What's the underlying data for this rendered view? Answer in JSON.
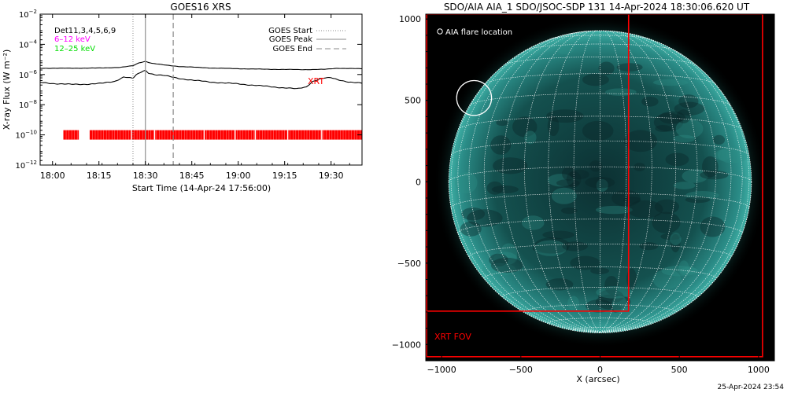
{
  "footer_timestamp": "25-Apr-2024 23:54",
  "colors": {
    "xrt": "#ff0000",
    "band_low": "#ff00ff",
    "band_high": "#00dd00",
    "axes": "#000000",
    "aia_disk": "#1d6f6c",
    "aia_background": "#000000"
  },
  "chart_data": [
    {
      "type": "line",
      "title": "GOES16 XRS",
      "xlabel": "Start Time (14-Apr-24 17:56:00)",
      "ylabel": "X-ray Flux (W m⁻²)",
      "y_scale": "log",
      "ylim": [
        1e-12,
        0.01
      ],
      "xlim": [
        0,
        104
      ],
      "x_units": "minutes after 17:56:00",
      "x_ticks": [
        {
          "value": 4,
          "label": "18:00"
        },
        {
          "value": 19,
          "label": "18:15"
        },
        {
          "value": 34,
          "label": "18:30"
        },
        {
          "value": 49,
          "label": "18:45"
        },
        {
          "value": 64,
          "label": "19:00"
        },
        {
          "value": 79,
          "label": "19:15"
        },
        {
          "value": 94,
          "label": "19:30"
        }
      ],
      "y_ticks": [
        {
          "value": 0.01,
          "base": "10",
          "exp": "−2"
        },
        {
          "value": 0.0001,
          "base": "10",
          "exp": "−4"
        },
        {
          "value": 1e-06,
          "base": "10",
          "exp": "−6"
        },
        {
          "value": 1e-08,
          "base": "10",
          "exp": "−8"
        },
        {
          "value": 1e-10,
          "base": "10",
          "exp": "−10"
        },
        {
          "value": 1e-12,
          "base": "10",
          "exp": "−12"
        }
      ],
      "legend_topleft": [
        "Det11,3,4,5,6,9",
        "6–12 keV",
        "12–25 keV"
      ],
      "legend_topright": [
        {
          "label": "GOES Start",
          "style": "dotted"
        },
        {
          "label": "GOES Peak",
          "style": "solid"
        },
        {
          "label": "GOES End",
          "style": "dashed"
        }
      ],
      "xrt_label": "XRT",
      "markers": {
        "goes_start": 30,
        "goes_peak": 34,
        "goes_end": 43
      },
      "xrt_observations": {
        "y": 1e-10,
        "segments": [
          [
            7.5,
            12.5
          ],
          [
            16,
            104
          ]
        ],
        "gaps": [
          29.5,
          37,
          53,
          63,
          69.5,
          80,
          91
        ]
      },
      "series": [
        {
          "band": "low",
          "color": "#000000",
          "x": [
            0,
            10,
            20,
            26,
            30,
            32,
            34,
            36,
            40,
            45,
            55,
            65,
            75,
            85,
            92,
            96,
            100,
            104
          ],
          "y": [
            2.6e-06,
            2.6e-06,
            2.7e-06,
            3e-06,
            3.8e-06,
            6e-06,
            7.5e-06,
            5.6e-06,
            4.3e-06,
            3.4e-06,
            2.7e-06,
            2.4e-06,
            2.2e-06,
            2.1e-06,
            2.2e-06,
            2.6e-06,
            2.5e-06,
            2.4e-06
          ]
        },
        {
          "band": "high",
          "color": "#000000",
          "x": [
            0,
            5,
            10,
            15,
            20,
            24,
            26,
            27,
            28,
            30,
            31,
            33,
            34,
            35,
            37,
            40,
            45,
            50,
            55,
            60,
            65,
            70,
            75,
            80,
            83,
            86,
            88,
            90,
            92,
            94,
            96,
            100,
            104
          ],
          "y": [
            3e-07,
            2.5e-07,
            2.2e-07,
            2.3e-07,
            2.6e-07,
            3.5e-07,
            5.5e-07,
            7e-07,
            6.5e-07,
            5.5e-07,
            9e-07,
            1.6e-06,
            1.9e-06,
            1.3e-06,
            1e-06,
            8.5e-07,
            5.5e-07,
            4e-07,
            3.2e-07,
            2.7e-07,
            2.3e-07,
            1.9e-07,
            1.5e-07,
            1.3e-07,
            1.1e-07,
            1.5e-07,
            3.5e-07,
            5e-07,
            5.8e-07,
            6e-07,
            4.6e-07,
            3.2e-07,
            2.6e-07
          ]
        }
      ]
    },
    {
      "type": "image",
      "title": "SDO/AIA AIA_1 SDO/JSOC-SDP 131 14-Apr-2024 18:30:06.620 UT",
      "xlabel": "X (arcsec)",
      "ylabel": "",
      "xlim": [
        -1100,
        1100
      ],
      "ylim": [
        -1100,
        1030
      ],
      "x_ticks": [
        {
          "value": -1000,
          "label": "−1000"
        },
        {
          "value": -500,
          "label": "−500"
        },
        {
          "value": 0,
          "label": "0"
        },
        {
          "value": 500,
          "label": "500"
        },
        {
          "value": 1000,
          "label": "1000"
        }
      ],
      "y_ticks": [
        {
          "value": 1000,
          "label": "1000"
        },
        {
          "value": 500,
          "label": "500"
        },
        {
          "value": 0,
          "label": "0"
        },
        {
          "value": -500,
          "label": "−500"
        },
        {
          "value": -1000,
          "label": "−1000"
        }
      ],
      "legend": "AIA flare location",
      "solar_radius_arcsec": 955,
      "grid_spacing_deg": 10,
      "b0_deg": -5.7,
      "flare_location": {
        "x": -795,
        "y": 515,
        "radius": 110
      },
      "xrt_fov_label": "XRT FOV",
      "xrt_fov": [
        {
          "x0": -1095,
          "x1": 1025,
          "y0": -1075,
          "y1": 1030
        },
        {
          "x0": -1095,
          "x1": 180,
          "y0": -795,
          "y1": 1215
        }
      ]
    }
  ]
}
